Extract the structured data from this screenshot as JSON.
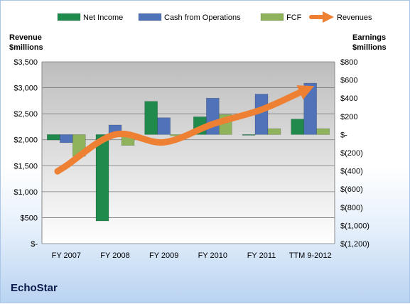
{
  "company": "EchoStar",
  "chart_data": {
    "type": "bar",
    "categories": [
      "FY 2007",
      "FY 2008",
      "FY 2009",
      "FY 2010",
      "FY 2011",
      "TTM 9-2012"
    ],
    "series": [
      {
        "name": "Net Income",
        "axis": "right",
        "kind": "bar",
        "color": "#1f8a4c",
        "values": [
          -60,
          -950,
          365,
          195,
          -5,
          170
        ]
      },
      {
        "name": "Cash from Operations",
        "axis": "right",
        "kind": "bar",
        "color": "#4f72b8",
        "values": [
          -90,
          105,
          185,
          400,
          445,
          565
        ]
      },
      {
        "name": "FCF",
        "axis": "right",
        "kind": "bar",
        "color": "#8fb35c",
        "values": [
          -240,
          -120,
          -15,
          220,
          65,
          65
        ]
      },
      {
        "name": "Revenues",
        "axis": "left",
        "kind": "arrow-line",
        "color": "#ee8033",
        "values": [
          1500,
          2100,
          1950,
          2300,
          2580,
          3000
        ]
      }
    ],
    "left_axis": {
      "title": [
        "Revenue",
        "$millions"
      ],
      "ylim": [
        0,
        3500
      ],
      "ticks": [
        0,
        500,
        1000,
        1500,
        2000,
        2500,
        3000,
        3500
      ],
      "tick_labels": [
        "$-",
        "$500",
        "$1,000",
        "$1,500",
        "$2,000",
        "$2,500",
        "$3,000",
        "$3,500"
      ]
    },
    "right_axis": {
      "title": [
        "Earnings",
        "$millions"
      ],
      "ylim": [
        -1200,
        800
      ],
      "ticks": [
        800,
        600,
        400,
        200,
        0,
        -200,
        -400,
        -600,
        -800,
        -1000,
        -1200
      ],
      "tick_labels": [
        "$800",
        "$600",
        "$400",
        "$200",
        "$-",
        "$(200)",
        "$(400)",
        "$(600)",
        "$(800)",
        "$(1,000)",
        "$(1,200)"
      ]
    },
    "grid": true,
    "legend_position": "top"
  }
}
